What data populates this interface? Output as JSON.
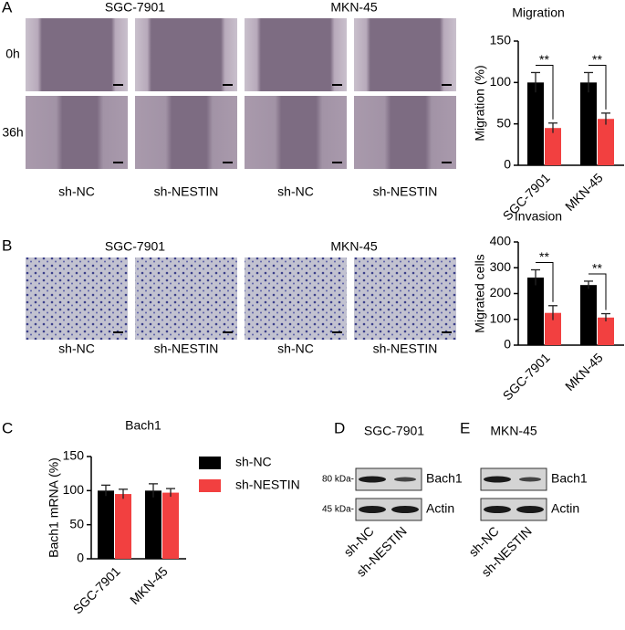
{
  "panel_labels": [
    "A",
    "B",
    "C",
    "D",
    "E"
  ],
  "wound_healing": {
    "groups": [
      "SGC-7901",
      "MKN-45"
    ],
    "times": [
      "0h",
      "36h"
    ],
    "conditions": [
      "sh-NC",
      "sh-NESTIN",
      "sh-NC",
      "sh-NESTIN"
    ]
  },
  "transwell": {
    "groups": [
      "SGC-7901",
      "MKN-45"
    ],
    "conditions": [
      "sh-NC",
      "sh-NESTIN",
      "sh-NC",
      "sh-NESTIN"
    ]
  },
  "chart_data": [
    {
      "type": "bar",
      "title": "Migration",
      "y_label": "Migration (%)",
      "categories": [
        "SGC-7901",
        "MKN-45"
      ],
      "series": [
        {
          "color": "#000000",
          "values": [
            100,
            100
          ],
          "errors": [
            12,
            12
          ]
        },
        {
          "color": "#f24040",
          "values": [
            45,
            56
          ],
          "errors": [
            6,
            7
          ]
        }
      ],
      "annotations": [
        "**",
        "**"
      ],
      "ylim": [
        0,
        150
      ],
      "yticks": [
        0,
        50,
        100,
        150
      ]
    },
    {
      "type": "bar",
      "title": "Invasion",
      "y_label": "Migrated cells",
      "categories": [
        "SGC-7901",
        "MKN-45"
      ],
      "series": [
        {
          "color": "#000000",
          "values": [
            262,
            233
          ],
          "errors": [
            30,
            15
          ]
        },
        {
          "color": "#f24040",
          "values": [
            125,
            107
          ],
          "errors": [
            28,
            15
          ]
        }
      ],
      "annotations": [
        "**",
        "**"
      ],
      "ylim": [
        0,
        400
      ],
      "yticks": [
        0,
        100,
        200,
        300,
        400
      ]
    },
    {
      "type": "bar",
      "title": "Bach1",
      "y_label": "Bach1 mRNA (%)",
      "categories": [
        "SGC-7901",
        "MKN-45"
      ],
      "series": [
        {
          "name": "sh-NC",
          "color": "#000000",
          "values": [
            100,
            100
          ],
          "errors": [
            8,
            10
          ]
        },
        {
          "name": "sh-NESTIN",
          "color": "#f24040",
          "values": [
            95,
            97
          ],
          "errors": [
            7,
            6
          ]
        }
      ],
      "ylim": [
        0,
        150
      ],
      "yticks": [
        0,
        50,
        100,
        150
      ],
      "legend": "right"
    }
  ],
  "western_blots": [
    {
      "cell_line": "SGC-7901",
      "markers": [
        {
          "weight": "80 kDa-",
          "protein": "Bach1"
        },
        {
          "weight": "45 kDa-",
          "protein": "Actin"
        }
      ],
      "lanes": [
        "sh-NC",
        "sh-NESTIN"
      ]
    },
    {
      "cell_line": "MKN-45",
      "markers": [
        {
          "protein": "Bach1"
        },
        {
          "protein": "Actin"
        }
      ],
      "lanes": [
        "sh-NC",
        "sh-NESTIN"
      ]
    }
  ]
}
